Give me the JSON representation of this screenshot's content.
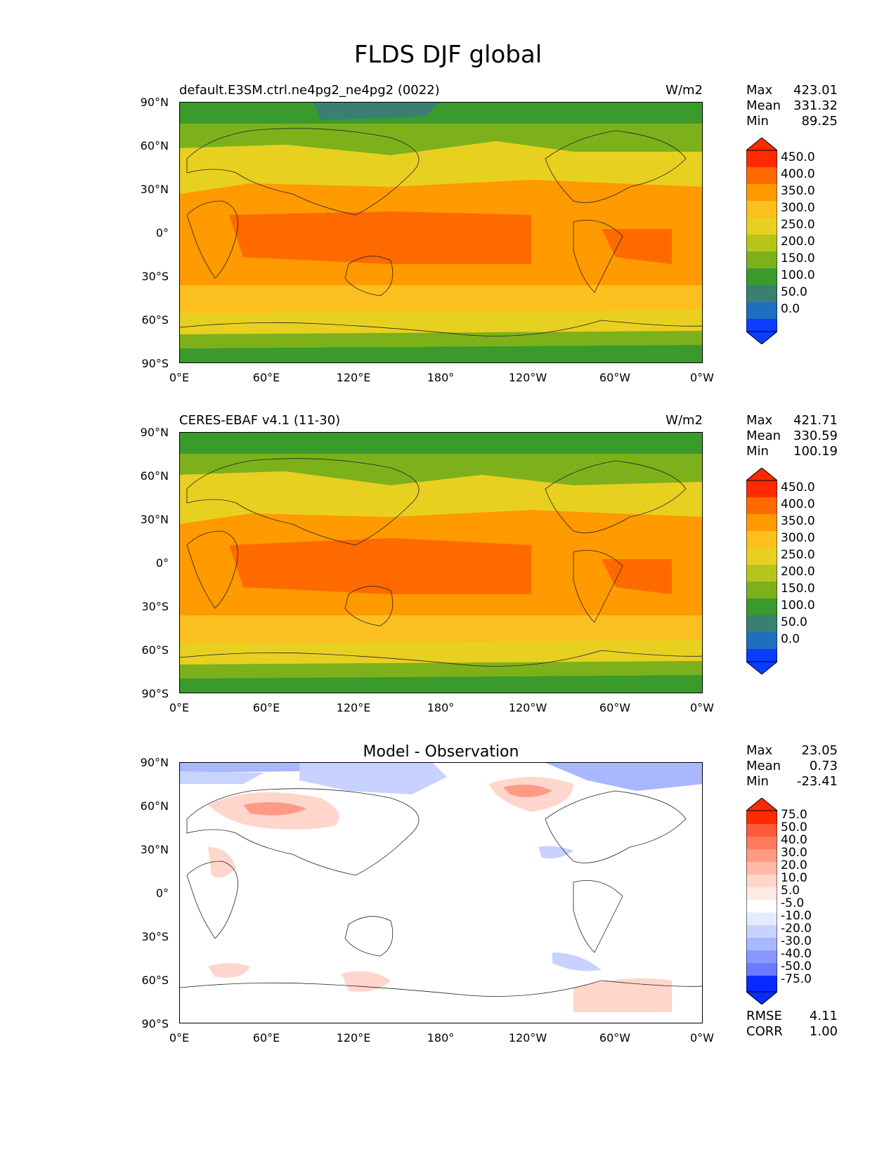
{
  "figure_title": "FLDS DJF global",
  "x_ticks": [
    "0°E",
    "60°E",
    "120°E",
    "180°",
    "120°W",
    "60°W",
    "0°W"
  ],
  "y_ticks": [
    "90°N",
    "60°N",
    "30°N",
    "0°",
    "30°S",
    "60°S",
    "90°S"
  ],
  "panels": [
    {
      "title_left": "default.E3SM.ctrl.ne4pg2_ne4pg2 (0022)",
      "title_right": "W/m2",
      "stats": [
        {
          "label": "Max",
          "value": "423.01"
        },
        {
          "label": "Mean",
          "value": "331.32"
        },
        {
          "label": "Min",
          "value": "89.25"
        }
      ],
      "colorbar_labels": [
        "450.0",
        "400.0",
        "350.0",
        "300.0",
        "250.0",
        "200.0",
        "150.0",
        "100.0",
        "50.0",
        "0.0"
      ]
    },
    {
      "title_left": "CERES-EBAF v4.1 (11-30)",
      "title_right": "W/m2",
      "stats": [
        {
          "label": "Max",
          "value": "421.71"
        },
        {
          "label": "Mean",
          "value": "330.59"
        },
        {
          "label": "Min",
          "value": "100.19"
        }
      ],
      "colorbar_labels": [
        "450.0",
        "400.0",
        "350.0",
        "300.0",
        "250.0",
        "200.0",
        "150.0",
        "100.0",
        "50.0",
        "0.0"
      ]
    },
    {
      "title_center": "Model - Observation",
      "stats": [
        {
          "label": "Max",
          "value": "23.05"
        },
        {
          "label": "Mean",
          "value": "0.73"
        },
        {
          "label": "Min",
          "value": "-23.41"
        }
      ],
      "colorbar_labels": [
        "75.0",
        "50.0",
        "40.0",
        "30.0",
        "20.0",
        "10.0",
        "5.0",
        "-5.0",
        "-10.0",
        "-20.0",
        "-30.0",
        "-40.0",
        "-50.0",
        "-75.0"
      ],
      "extra_stats": [
        {
          "label": "RMSE",
          "value": "4.11"
        },
        {
          "label": "CORR",
          "value": "1.00"
        }
      ]
    }
  ],
  "colors": {
    "abs_scale": [
      "#ff2a00",
      "#ff6a00",
      "#ff9a00",
      "#fbbf1f",
      "#e8d020",
      "#b6c41c",
      "#7cb11c",
      "#3a9a2c",
      "#3a8070",
      "#1f6fbf",
      "#0a3dff"
    ],
    "diff_scale": [
      "#ff2a00",
      "#ff5a3c",
      "#ff7a5e",
      "#ff9a84",
      "#ffb9a8",
      "#ffd6cc",
      "#ffeae4",
      "#ffffff",
      "#e6eaff",
      "#c8d2ff",
      "#a9b7ff",
      "#8898ff",
      "#6a7cff",
      "#4a5cff",
      "#0a2aff"
    ]
  }
}
